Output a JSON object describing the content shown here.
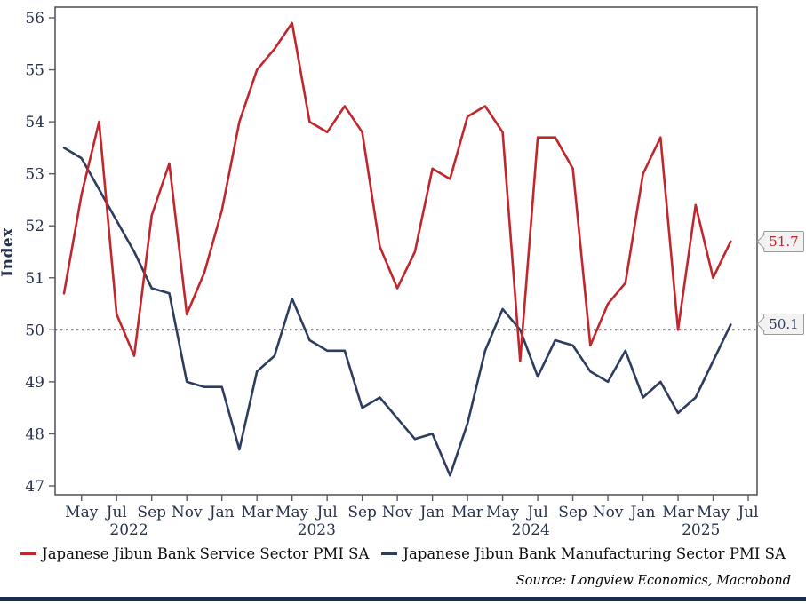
{
  "chart_data": {
    "type": "line",
    "title": "",
    "ylabel": "Index",
    "ylim": [
      47,
      56
    ],
    "yticks": [
      47,
      48,
      49,
      50,
      51,
      52,
      53,
      54,
      55,
      56
    ],
    "grid": false,
    "legend_position": "bottom",
    "reference_line": {
      "value": 50,
      "style": "dotted",
      "color": "#2b2b2b"
    },
    "x_months": [
      "Apr 2022",
      "May 2022",
      "Jun 2022",
      "Jul 2022",
      "Aug 2022",
      "Sep 2022",
      "Oct 2022",
      "Nov 2022",
      "Dec 2022",
      "Jan 2023",
      "Feb 2023",
      "Mar 2023",
      "Apr 2023",
      "May 2023",
      "Jun 2023",
      "Jul 2023",
      "Aug 2023",
      "Sep 2023",
      "Oct 2023",
      "Nov 2023",
      "Dec 2023",
      "Jan 2024",
      "Feb 2024",
      "Mar 2024",
      "Apr 2024",
      "May 2024",
      "Jun 2024",
      "Jul 2024",
      "Aug 2024",
      "Sep 2024",
      "Oct 2024",
      "Nov 2024",
      "Dec 2024",
      "Jan 2025",
      "Feb 2025",
      "Mar 2025",
      "Apr 2025",
      "May 2025",
      "Jun 2025"
    ],
    "x_ticks": [
      {
        "index": 1,
        "label": "May"
      },
      {
        "index": 3,
        "label": "Jul"
      },
      {
        "index": 5,
        "label": "Sep"
      },
      {
        "index": 7,
        "label": "Nov"
      },
      {
        "index": 9,
        "label": "Jan"
      },
      {
        "index": 11,
        "label": "Mar"
      },
      {
        "index": 13,
        "label": "May"
      },
      {
        "index": 15,
        "label": "Jul"
      },
      {
        "index": 17,
        "label": "Sep"
      },
      {
        "index": 19,
        "label": "Nov"
      },
      {
        "index": 21,
        "label": "Jan"
      },
      {
        "index": 23,
        "label": "Mar"
      },
      {
        "index": 25,
        "label": "May"
      },
      {
        "index": 27,
        "label": "Jul"
      },
      {
        "index": 29,
        "label": "Sep"
      },
      {
        "index": 31,
        "label": "Nov"
      },
      {
        "index": 33,
        "label": "Jan"
      },
      {
        "index": 35,
        "label": "Mar"
      },
      {
        "index": 37,
        "label": "May"
      },
      {
        "index": 39,
        "label": "Jul"
      }
    ],
    "year_labels": [
      {
        "label": "2022",
        "center_index": 3.7
      },
      {
        "label": "2023",
        "center_index": 14.4
      },
      {
        "label": "2024",
        "center_index": 26.6
      },
      {
        "label": "2025",
        "center_index": 36.3
      }
    ],
    "series": [
      {
        "name": "Japanese Jibun Bank Service Sector PMI SA",
        "color": "#c2262d",
        "end_label": "51.7",
        "values": [
          50.7,
          52.6,
          54.0,
          50.3,
          49.5,
          52.2,
          53.2,
          50.3,
          51.1,
          52.3,
          54.0,
          55.0,
          55.4,
          55.9,
          54.0,
          53.8,
          54.3,
          53.8,
          51.6,
          50.8,
          51.5,
          53.1,
          52.9,
          54.1,
          54.3,
          53.8,
          49.4,
          53.7,
          53.7,
          53.1,
          49.7,
          50.5,
          50.9,
          53.0,
          53.7,
          50.0,
          52.4,
          51.0,
          51.7
        ]
      },
      {
        "name": "Japanese Jibun Bank Manufacturing Sector PMI SA",
        "color": "#2e3c60",
        "end_label": "50.1",
        "values": [
          53.5,
          53.3,
          52.7,
          52.1,
          51.5,
          50.8,
          50.7,
          49.0,
          48.9,
          48.9,
          47.7,
          49.2,
          49.5,
          50.6,
          49.8,
          49.6,
          49.6,
          48.5,
          48.7,
          48.3,
          47.9,
          48.0,
          47.2,
          48.2,
          49.6,
          50.4,
          50.0,
          49.1,
          49.8,
          49.7,
          49.2,
          49.0,
          49.6,
          48.7,
          49.0,
          48.4,
          48.7,
          49.4,
          50.1
        ]
      }
    ],
    "axis_text_color": "#27324e",
    "border_color": "#595a5e",
    "bottom_bar_color": "#1d2d4d"
  },
  "source": "Source: Longview Economics, Macrobond"
}
